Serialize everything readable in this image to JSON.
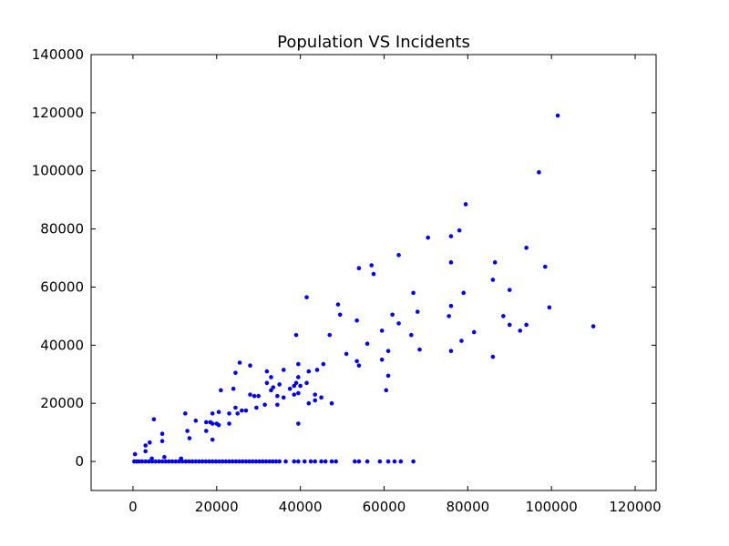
{
  "chart_data": {
    "type": "scatter",
    "title": "Population VS Incidents",
    "xlabel": "",
    "ylabel": "",
    "xlim": [
      -10000,
      125000
    ],
    "ylim": [
      -10000,
      140000
    ],
    "xticks": [
      0,
      20000,
      40000,
      60000,
      80000,
      100000,
      120000
    ],
    "yticks": [
      0,
      20000,
      40000,
      60000,
      80000,
      100000,
      120000,
      140000
    ],
    "xtick_labels": [
      "0",
      "20000",
      "40000",
      "60000",
      "80000",
      "100000",
      "120000"
    ],
    "ytick_labels": [
      "0",
      "20000",
      "40000",
      "60000",
      "80000",
      "100000",
      "120000",
      "140000"
    ],
    "grid": false,
    "marker_color": "#0000ff",
    "series": [
      {
        "points": [
          [
            101500,
            119000
          ],
          [
            97000,
            99500
          ],
          [
            79500,
            88500
          ],
          [
            70500,
            77000
          ],
          [
            76000,
            77500
          ],
          [
            78000,
            79500
          ],
          [
            94000,
            73500
          ],
          [
            63500,
            71000
          ],
          [
            76000,
            68500
          ],
          [
            86500,
            68500
          ],
          [
            98500,
            67000
          ],
          [
            57000,
            67500
          ],
          [
            54000,
            66500
          ],
          [
            57500,
            64500
          ],
          [
            86000,
            62500
          ],
          [
            90000,
            59000
          ],
          [
            67000,
            58000
          ],
          [
            79000,
            58000
          ],
          [
            41500,
            56500
          ],
          [
            49000,
            54000
          ],
          [
            76000,
            53500
          ],
          [
            99500,
            53000
          ],
          [
            68000,
            51500
          ],
          [
            62000,
            50500
          ],
          [
            49500,
            50500
          ],
          [
            75500,
            50000
          ],
          [
            88500,
            50000
          ],
          [
            63500,
            47500
          ],
          [
            90000,
            47000
          ],
          [
            94000,
            47000
          ],
          [
            53500,
            48500
          ],
          [
            110000,
            46500
          ],
          [
            59500,
            45000
          ],
          [
            81500,
            44500
          ],
          [
            92500,
            45000
          ],
          [
            39000,
            43500
          ],
          [
            47000,
            43500
          ],
          [
            66500,
            43500
          ],
          [
            56000,
            40500
          ],
          [
            78500,
            41500
          ],
          [
            61000,
            38000
          ],
          [
            68500,
            38500
          ],
          [
            51000,
            37000
          ],
          [
            76000,
            38000
          ],
          [
            59500,
            35000
          ],
          [
            86000,
            36000
          ],
          [
            53500,
            34500
          ],
          [
            25500,
            34000
          ],
          [
            28000,
            33000
          ],
          [
            39500,
            33500
          ],
          [
            45500,
            33500
          ],
          [
            54000,
            33000
          ],
          [
            32000,
            31000
          ],
          [
            36000,
            31500
          ],
          [
            42000,
            31000
          ],
          [
            44000,
            31500
          ],
          [
            24500,
            30500
          ],
          [
            61000,
            29500
          ],
          [
            33000,
            29000
          ],
          [
            39500,
            29000
          ],
          [
            32000,
            27000
          ],
          [
            35000,
            26500
          ],
          [
            39000,
            27000
          ],
          [
            41500,
            27000
          ],
          [
            33500,
            25500
          ],
          [
            38500,
            26000
          ],
          [
            40000,
            26000
          ],
          [
            24000,
            25000
          ],
          [
            21000,
            24500
          ],
          [
            33000,
            24500
          ],
          [
            37500,
            25000
          ],
          [
            60500,
            24500
          ],
          [
            29000,
            22500
          ],
          [
            34500,
            22500
          ],
          [
            38500,
            23000
          ],
          [
            39500,
            23500
          ],
          [
            43500,
            23000
          ],
          [
            45000,
            22000
          ],
          [
            28000,
            23000
          ],
          [
            36000,
            22000
          ],
          [
            30000,
            22500
          ],
          [
            42000,
            20000
          ],
          [
            43500,
            21000
          ],
          [
            47500,
            20000
          ],
          [
            31500,
            19500
          ],
          [
            34500,
            19500
          ],
          [
            24500,
            18500
          ],
          [
            26000,
            17500
          ],
          [
            27000,
            17500
          ],
          [
            29500,
            18500
          ],
          [
            25000,
            16500
          ],
          [
            19000,
            16500
          ],
          [
            20500,
            17000
          ],
          [
            23000,
            16500
          ],
          [
            12500,
            16500
          ],
          [
            5000,
            14500
          ],
          [
            15000,
            14000
          ],
          [
            17500,
            13500
          ],
          [
            18500,
            13500
          ],
          [
            19000,
            13000
          ],
          [
            20000,
            13000
          ],
          [
            20500,
            12500
          ],
          [
            23000,
            13000
          ],
          [
            39500,
            13000
          ],
          [
            13000,
            10500
          ],
          [
            17500,
            10500
          ],
          [
            7000,
            9500
          ],
          [
            13500,
            8000
          ],
          [
            19000,
            7500
          ],
          [
            7000,
            7000
          ],
          [
            4000,
            6500
          ],
          [
            3000,
            5500
          ],
          [
            3000,
            3500
          ],
          [
            500,
            2500
          ],
          [
            4500,
            1000
          ],
          [
            7500,
            1500
          ],
          [
            11500,
            1000
          ],
          [
            300,
            0
          ],
          [
            900,
            0
          ],
          [
            1500,
            0
          ],
          [
            2200,
            0
          ],
          [
            3000,
            0
          ],
          [
            3800,
            0
          ],
          [
            4600,
            0
          ],
          [
            5400,
            0
          ],
          [
            6200,
            0
          ],
          [
            7000,
            0
          ],
          [
            7800,
            0
          ],
          [
            8600,
            0
          ],
          [
            9400,
            0
          ],
          [
            10200,
            0
          ],
          [
            11000,
            0
          ],
          [
            11800,
            0
          ],
          [
            12600,
            0
          ],
          [
            13400,
            0
          ],
          [
            14200,
            0
          ],
          [
            15000,
            0
          ],
          [
            15800,
            0
          ],
          [
            16600,
            0
          ],
          [
            17400,
            0
          ],
          [
            18200,
            0
          ],
          [
            19000,
            0
          ],
          [
            19800,
            0
          ],
          [
            20600,
            0
          ],
          [
            21400,
            0
          ],
          [
            22200,
            0
          ],
          [
            23000,
            0
          ],
          [
            23800,
            0
          ],
          [
            24600,
            0
          ],
          [
            25400,
            0
          ],
          [
            26200,
            0
          ],
          [
            27000,
            0
          ],
          [
            27800,
            0
          ],
          [
            28600,
            0
          ],
          [
            29400,
            0
          ],
          [
            30200,
            0
          ],
          [
            31000,
            0
          ],
          [
            31800,
            0
          ],
          [
            32600,
            0
          ],
          [
            33400,
            0
          ],
          [
            34200,
            0
          ],
          [
            35000,
            0
          ],
          [
            36500,
            0
          ],
          [
            38500,
            0
          ],
          [
            39500,
            0
          ],
          [
            41000,
            0
          ],
          [
            42500,
            0
          ],
          [
            43500,
            0
          ],
          [
            45000,
            0
          ],
          [
            46000,
            0
          ],
          [
            47500,
            0
          ],
          [
            48500,
            0
          ],
          [
            53000,
            0
          ],
          [
            54000,
            0
          ],
          [
            56000,
            0
          ],
          [
            59000,
            0
          ],
          [
            61000,
            0
          ],
          [
            62500,
            0
          ],
          [
            64000,
            0
          ],
          [
            67000,
            0
          ]
        ]
      }
    ]
  }
}
